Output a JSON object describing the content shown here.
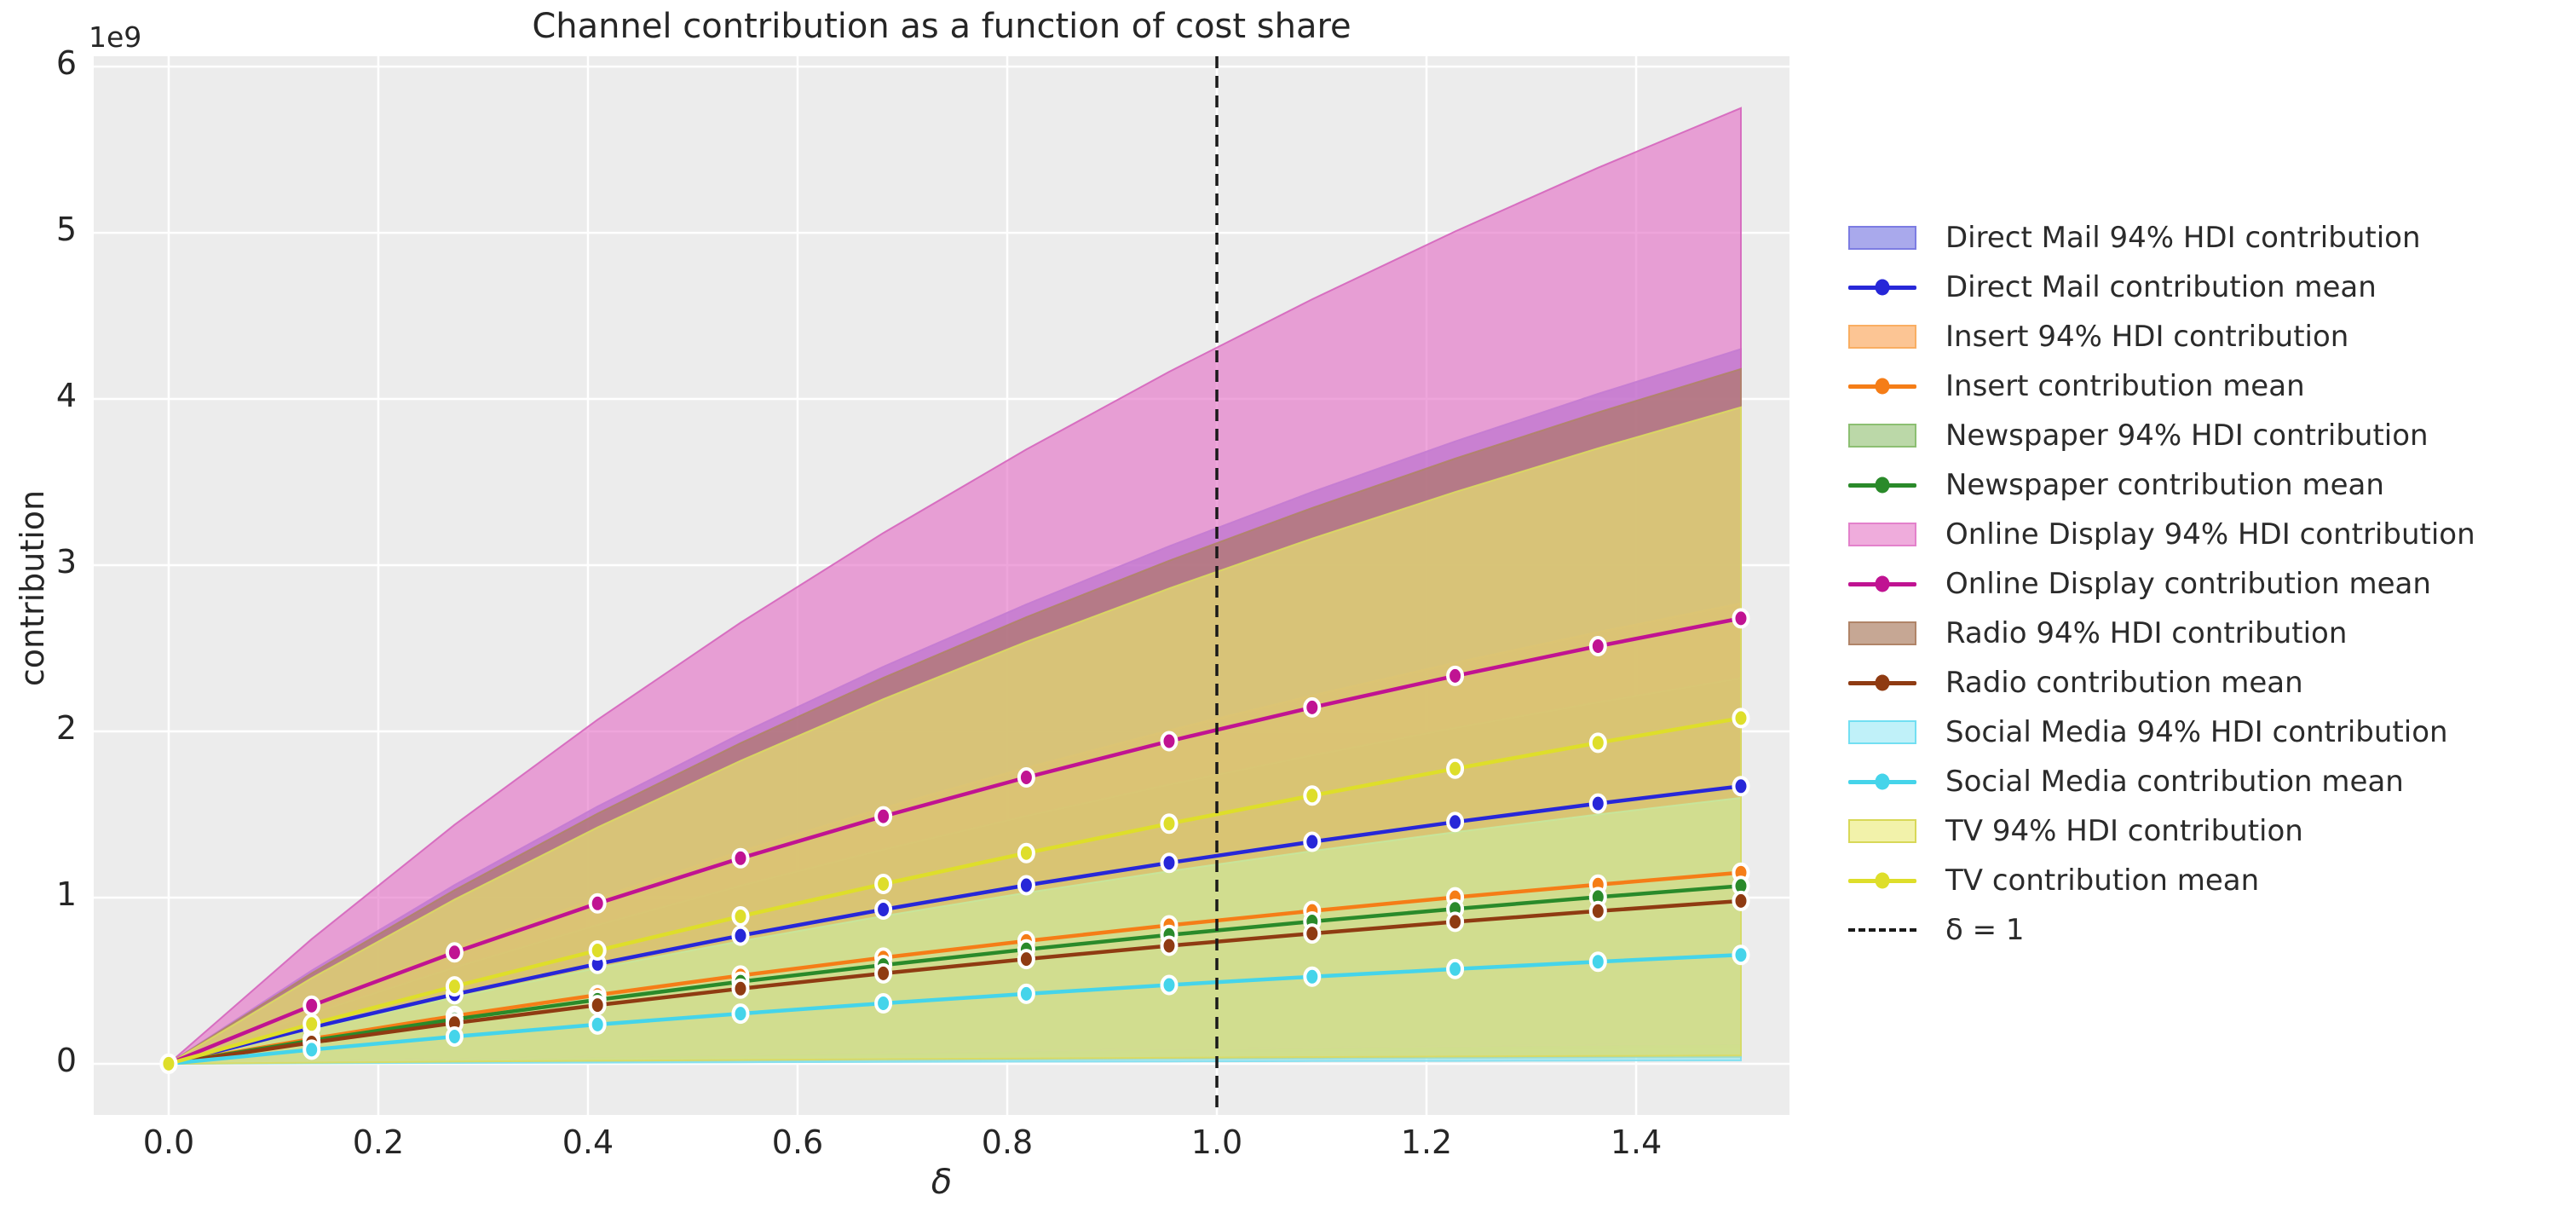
{
  "title": "Channel contribution as a function of cost share",
  "axes": {
    "x_label": "δ",
    "y_label": "contribution",
    "offset_label": "1e9",
    "x_tick_labels": [
      "0.0",
      "0.2",
      "0.4",
      "0.6",
      "0.8",
      "1.0",
      "1.2",
      "1.4"
    ],
    "x_tick_values": [
      0.0,
      0.2,
      0.4,
      0.6,
      0.8,
      1.0,
      1.2,
      1.4
    ],
    "y_tick_labels": [
      "0",
      "1",
      "2",
      "3",
      "4",
      "5",
      "6"
    ],
    "y_tick_values": [
      0,
      1,
      2,
      3,
      4,
      5,
      6
    ]
  },
  "chart_data": {
    "type": "area",
    "subtype": "line-with-hdi-bands",
    "title": "Channel contribution as a function of cost share",
    "xlabel": "δ",
    "ylabel": "contribution",
    "y_unit_multiplier": "1e9",
    "xlim": [
      -0.0715,
      1.5463
    ],
    "ylim": [
      -0.308,
      6.062
    ],
    "grid": true,
    "legend_position": "right-outside",
    "x": [
      0.0,
      0.1364,
      0.2727,
      0.4091,
      0.5455,
      0.6818,
      0.8182,
      0.9545,
      1.0909,
      1.2273,
      1.3636,
      1.5
    ],
    "vline": {
      "x": 1.0,
      "label": "δ = 1",
      "style": "dashed",
      "color": "#1a1a1a"
    },
    "series": [
      {
        "name": "Direct Mail",
        "slug": "direct-mail",
        "line_color": "#2727d8",
        "fill_color": "#6969dd",
        "edge_color": "#8888e4",
        "mean": [
          0,
          0.218,
          0.418,
          0.601,
          0.771,
          0.928,
          1.074,
          1.209,
          1.336,
          1.455,
          1.566,
          1.67
        ],
        "hdi_lower": [
          0,
          0.013,
          0.025,
          0.036,
          0.046,
          0.056,
          0.064,
          0.072,
          0.08,
          0.087,
          0.094,
          0.1
        ],
        "hdi_upper": [
          0,
          0.561,
          1.075,
          1.548,
          1.985,
          2.389,
          2.764,
          3.114,
          3.44,
          3.745,
          4.031,
          4.3
        ]
      },
      {
        "name": "Insert",
        "slug": "insert",
        "line_color": "#f57d17",
        "fill_color": "#fa9f4c",
        "edge_color": "#f8b26d",
        "mean": [
          0,
          0.15,
          0.288,
          0.414,
          0.531,
          0.639,
          0.739,
          0.833,
          0.92,
          1.002,
          1.078,
          1.15
        ],
        "hdi_lower": [
          0,
          0.008,
          0.015,
          0.022,
          0.028,
          0.033,
          0.039,
          0.043,
          0.048,
          0.052,
          0.056,
          0.06
        ],
        "hdi_upper": [
          0,
          0.361,
          0.693,
          0.997,
          1.278,
          1.539,
          1.781,
          2.006,
          2.216,
          2.413,
          2.597,
          2.77
        ]
      },
      {
        "name": "Newspaper",
        "slug": "newspaper",
        "line_color": "#2a8a2a",
        "fill_color": "#8fbf6f",
        "edge_color": "#a2cc84",
        "mean": [
          0,
          0.14,
          0.268,
          0.385,
          0.494,
          0.594,
          0.688,
          0.775,
          0.856,
          0.932,
          1.003,
          1.07
        ],
        "hdi_lower": [
          0,
          0.005,
          0.01,
          0.014,
          0.018,
          0.022,
          0.026,
          0.029,
          0.032,
          0.035,
          0.038,
          0.04
        ],
        "hdi_upper": [
          0,
          0.303,
          0.58,
          0.835,
          1.071,
          1.289,
          1.491,
          1.68,
          1.856,
          2.021,
          2.175,
          2.32
        ]
      },
      {
        "name": "Online Display",
        "slug": "online-display",
        "line_color": "#c01392",
        "fill_color": "#e575c8",
        "edge_color": "#d565bd",
        "mean": [
          0,
          0.35,
          0.67,
          0.965,
          1.237,
          1.489,
          1.723,
          1.941,
          2.144,
          2.334,
          2.513,
          2.68
        ],
        "hdi_lower": [
          0,
          0.016,
          0.03,
          0.043,
          0.055,
          0.067,
          0.077,
          0.087,
          0.096,
          0.105,
          0.113,
          0.12
        ],
        "hdi_upper": [
          0,
          0.75,
          1.438,
          2.07,
          2.654,
          3.194,
          3.696,
          4.164,
          4.6,
          5.008,
          5.391,
          5.75
        ]
      },
      {
        "name": "Radio",
        "slug": "radio",
        "line_color": "#8f3b12",
        "fill_color": "#aa7760",
        "edge_color": "#b08468",
        "mean": [
          0,
          0.128,
          0.245,
          0.353,
          0.452,
          0.544,
          0.63,
          0.71,
          0.784,
          0.854,
          0.919,
          0.98
        ],
        "hdi_lower": [
          0,
          0.007,
          0.013,
          0.018,
          0.023,
          0.028,
          0.032,
          0.036,
          0.04,
          0.044,
          0.047,
          0.05
        ],
        "hdi_upper": [
          0,
          0.545,
          1.045,
          1.505,
          1.929,
          2.322,
          2.687,
          3.027,
          3.344,
          3.641,
          3.919,
          4.18
        ]
      },
      {
        "name": "Social Media",
        "slug": "social-media",
        "line_color": "#45d4ea",
        "fill_color": "#97e8f5",
        "edge_color": "#7fdff0",
        "mean": [
          0,
          0.085,
          0.164,
          0.236,
          0.302,
          0.364,
          0.421,
          0.474,
          0.524,
          0.57,
          0.614,
          0.655
        ],
        "hdi_lower": [
          0,
          0.003,
          0.005,
          0.007,
          0.009,
          0.011,
          0.013,
          0.014,
          0.016,
          0.017,
          0.019,
          0.02
        ],
        "hdi_upper": [
          0,
          0.209,
          0.4,
          0.576,
          0.738,
          0.889,
          1.029,
          1.159,
          1.28,
          1.394,
          1.5,
          1.6
        ]
      },
      {
        "name": "TV",
        "slug": "tv",
        "line_color": "#dede2a",
        "fill_color": "#ebeb70",
        "edge_color": "#dada60",
        "mean": [
          0,
          0.239,
          0.466,
          0.682,
          0.887,
          1.082,
          1.268,
          1.445,
          1.614,
          1.776,
          1.931,
          2.08
        ],
        "hdi_lower": [
          0,
          0.007,
          0.013,
          0.018,
          0.023,
          0.028,
          0.032,
          0.036,
          0.04,
          0.044,
          0.047,
          0.05
        ],
        "hdi_upper": [
          0,
          0.515,
          0.988,
          1.422,
          1.823,
          2.194,
          2.539,
          2.86,
          3.16,
          3.44,
          3.703,
          3.95
        ]
      }
    ]
  },
  "legend": {
    "entries": [
      {
        "kind": "patch",
        "label": "Direct Mail 94% HDI contribution",
        "swatch_fill": "#a9a9ec",
        "swatch_edge": "#7c7ce2"
      },
      {
        "kind": "line",
        "label": "Direct Mail contribution mean",
        "color": "#2727d8"
      },
      {
        "kind": "patch",
        "label": "Insert 94% HDI contribution",
        "swatch_fill": "#fcc594",
        "swatch_edge": "#f9ae62"
      },
      {
        "kind": "line",
        "label": "Insert contribution mean",
        "color": "#f57d17"
      },
      {
        "kind": "patch",
        "label": "Newspaper 94% HDI contribution",
        "swatch_fill": "#bbd8a8",
        "swatch_edge": "#8cbf72"
      },
      {
        "kind": "line",
        "label": "Newspaper contribution mean",
        "color": "#2a8a2a"
      },
      {
        "kind": "patch",
        "label": "Online Display 94% HDI contribution",
        "swatch_fill": "#efacdc",
        "swatch_edge": "#e381cb"
      },
      {
        "kind": "line",
        "label": "Online Display contribution mean",
        "color": "#c01392"
      },
      {
        "kind": "patch",
        "label": "Radio 94% HDI contribution",
        "swatch_fill": "#c6a794",
        "swatch_edge": "#b08468"
      },
      {
        "kind": "line",
        "label": "Radio contribution mean",
        "color": "#8f3b12"
      },
      {
        "kind": "patch",
        "label": "Social Media 94% HDI contribution",
        "swatch_fill": "#c0f1f9",
        "swatch_edge": "#72dff2"
      },
      {
        "kind": "line",
        "label": "Social Media contribution mean",
        "color": "#45d4ea"
      },
      {
        "kind": "patch",
        "label": "TV 94% HDI contribution",
        "swatch_fill": "#f2f2aa",
        "swatch_edge": "#d8d858"
      },
      {
        "kind": "line",
        "label": "TV contribution mean",
        "color": "#dede2a"
      },
      {
        "kind": "dashed",
        "label": "δ = 1",
        "color": "#1a1a1a"
      }
    ]
  },
  "style": {
    "plot_bg": "#ececec",
    "grid_color": "#ffffff",
    "band_alpha": 0.65,
    "text_color": "#262626"
  }
}
